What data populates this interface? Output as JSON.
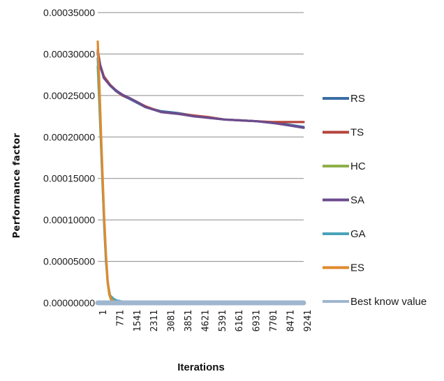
{
  "chart_data": {
    "type": "line",
    "title": "",
    "xlabel": "Iterations",
    "ylabel": "Performance factor",
    "ylim": [
      0,
      0.00035
    ],
    "xlim": [
      1,
      10000
    ],
    "grid": true,
    "legend_position": "right",
    "yticks": [
      "0.00035000",
      "0.00030000",
      "0.00025000",
      "0.00020000",
      "0.00015000",
      "0.00010000",
      "0.00005000",
      "0.00000000"
    ],
    "xticks": [
      "1",
      "771",
      "1541",
      "2311",
      "3081",
      "3851",
      "4621",
      "5391",
      "6161",
      "6931",
      "7701",
      "8471",
      "9241"
    ],
    "series": [
      {
        "name": "RS",
        "color": "#3a6ea5",
        "x": [
          1,
          120,
          300,
          600,
          900,
          1200,
          1541,
          2000,
          2311,
          3081,
          3851,
          4621,
          5391,
          6161,
          6931,
          7701,
          8471,
          9241,
          10000
        ],
        "y": [
          0.0003,
          0.000285,
          0.000272,
          0.000262,
          0.000255,
          0.00025,
          0.000246,
          0.00024,
          0.000236,
          0.000231,
          0.000229,
          0.000226,
          0.000223,
          0.000221,
          0.00022,
          0.000219,
          0.000217,
          0.000215,
          0.000212
        ]
      },
      {
        "name": "TS",
        "color": "#b5443c",
        "x": [
          1,
          120,
          300,
          600,
          900,
          1200,
          1541,
          2000,
          2311,
          3081,
          3851,
          4621,
          5391,
          6161,
          6931,
          7701,
          8471,
          9241,
          10000
        ],
        "y": [
          0.000305,
          0.000287,
          0.000273,
          0.000263,
          0.000256,
          0.00025,
          0.000247,
          0.000241,
          0.000237,
          0.00023,
          0.000228,
          0.000226,
          0.000224,
          0.000221,
          0.00022,
          0.000219,
          0.000218,
          0.000218,
          0.000218
        ]
      },
      {
        "name": "HC",
        "color": "#8fae4a",
        "x": [
          1,
          80,
          160,
          240,
          320,
          400,
          480,
          560,
          640,
          771,
          900,
          10000
        ],
        "y": [
          0.000285,
          0.00024,
          0.00019,
          0.00014,
          9.5e-05,
          5.5e-05,
          2.5e-05,
          1e-05,
          4e-06,
          1e-06,
          5e-07,
          3e-07
        ]
      },
      {
        "name": "SA",
        "color": "#6b4c8e",
        "x": [
          1,
          120,
          300,
          600,
          900,
          1200,
          1541,
          2000,
          2311,
          3081,
          3851,
          4621,
          5391,
          6161,
          6931,
          7701,
          8471,
          9241,
          10000
        ],
        "y": [
          0.000302,
          0.000286,
          0.000271,
          0.000262,
          0.000256,
          0.000251,
          0.000247,
          0.000241,
          0.000236,
          0.00023,
          0.000228,
          0.000225,
          0.000223,
          0.000221,
          0.00022,
          0.000219,
          0.000217,
          0.000214,
          0.000211
        ]
      },
      {
        "name": "GA",
        "color": "#4aa3b8",
        "x": [
          1,
          80,
          160,
          240,
          320,
          400,
          500,
          600,
          771,
          900,
          1100,
          1300,
          10000
        ],
        "y": [
          0.000295,
          0.00025,
          0.000195,
          0.00014,
          9e-05,
          5e-05,
          2.2e-05,
          9e-06,
          5e-06,
          3e-06,
          2e-06,
          1e-06,
          8e-07
        ]
      },
      {
        "name": "ES",
        "color": "#e08a2e",
        "x": [
          1,
          80,
          160,
          240,
          320,
          400,
          480,
          560,
          640,
          771,
          900,
          10000
        ],
        "y": [
          0.000315,
          0.000265,
          0.000205,
          0.00015,
          0.0001,
          5.8e-05,
          2.8e-05,
          1.2e-05,
          5e-06,
          2e-06,
          1e-06,
          5e-07
        ]
      },
      {
        "name": "Best know value",
        "color": "#9fb6cf",
        "x": [
          1,
          10000
        ],
        "y": [
          0.0,
          0.0
        ]
      }
    ]
  }
}
